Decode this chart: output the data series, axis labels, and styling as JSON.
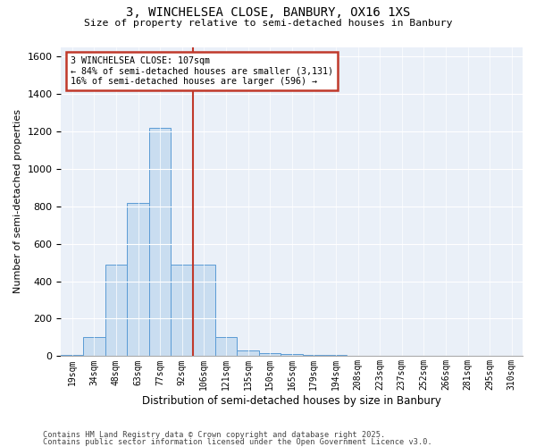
{
  "title_line1": "3, WINCHELSEA CLOSE, BANBURY, OX16 1XS",
  "title_line2": "Size of property relative to semi-detached houses in Banbury",
  "xlabel": "Distribution of semi-detached houses by size in Banbury",
  "ylabel": "Number of semi-detached properties",
  "categories": [
    "19sqm",
    "34sqm",
    "48sqm",
    "63sqm",
    "77sqm",
    "92sqm",
    "106sqm",
    "121sqm",
    "135sqm",
    "150sqm",
    "165sqm",
    "179sqm",
    "194sqm",
    "208sqm",
    "223sqm",
    "237sqm",
    "252sqm",
    "266sqm",
    "281sqm",
    "295sqm",
    "310sqm"
  ],
  "bar_values": [
    5,
    100,
    490,
    820,
    1220,
    490,
    490,
    100,
    30,
    15,
    10,
    5,
    5,
    3,
    2,
    1,
    0,
    0,
    0,
    0,
    0
  ],
  "bar_color": "#c9ddf0",
  "bar_edge_color": "#5b9bd5",
  "vline_x_index": 6,
  "annotation_text_line1": "3 WINCHELSEA CLOSE: 107sqm",
  "annotation_text_line2": "← 84% of semi-detached houses are smaller (3,131)",
  "annotation_text_line3": "16% of semi-detached houses are larger (596) →",
  "vline_color": "#c0392b",
  "annotation_box_edgecolor": "#c0392b",
  "ylim": [
    0,
    1650
  ],
  "yticks": [
    0,
    200,
    400,
    600,
    800,
    1000,
    1200,
    1400,
    1600
  ],
  "plot_bg_color": "#eaf0f8",
  "footer_line1": "Contains HM Land Registry data © Crown copyright and database right 2025.",
  "footer_line2": "Contains public sector information licensed under the Open Government Licence v3.0."
}
